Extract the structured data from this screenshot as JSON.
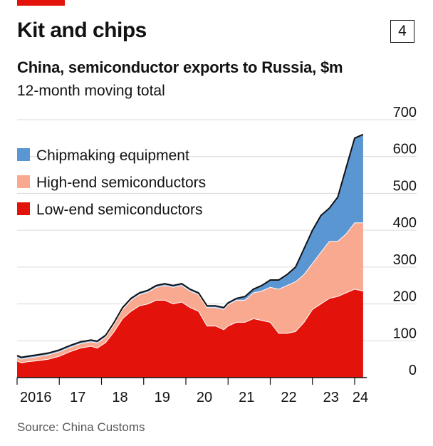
{
  "header": {
    "title": "Kit and chips",
    "chart_number": "4",
    "subtitle": "China, semiconductor exports to Russia, $m",
    "subsubtitle": "12-month moving total",
    "source": "Source: China Customs"
  },
  "colors": {
    "low": "#e3120b",
    "high": "#f9a98f",
    "equipment": "#5a96d2",
    "total_line": "#121212",
    "accent": "#e3120b"
  },
  "chart_data": {
    "type": "area",
    "stacked": true,
    "y_axis": {
      "range": [
        0,
        700
      ],
      "ticks": [
        "0",
        "100",
        "200",
        "300",
        "400",
        "500",
        "600",
        "700"
      ],
      "position": "right",
      "grid": true
    },
    "x_axis": {
      "range": [
        2016,
        2024.2
      ],
      "ticks": [
        {
          "value": 2016,
          "label": "2016"
        },
        {
          "value": 2017,
          "label": "17"
        },
        {
          "value": 2018,
          "label": "18"
        },
        {
          "value": 2019,
          "label": "19"
        },
        {
          "value": 2020,
          "label": "20"
        },
        {
          "value": 2021,
          "label": "21"
        },
        {
          "value": 2022,
          "label": "22"
        },
        {
          "value": 2023,
          "label": "23"
        },
        {
          "value": 2024,
          "label": "24"
        }
      ]
    },
    "legend": {
      "placement": "top-left",
      "items": [
        "Chipmaking equipment",
        "High-end semiconductors",
        "Low-end semiconductors"
      ]
    },
    "x": [
      2016.0,
      2016.1,
      2016.25,
      2016.5,
      2016.75,
      2017.0,
      2017.25,
      2017.5,
      2017.75,
      2017.9,
      2018.1,
      2018.3,
      2018.5,
      2018.7,
      2018.9,
      2019.1,
      2019.3,
      2019.5,
      2019.7,
      2019.9,
      2020.1,
      2020.3,
      2020.5,
      2020.7,
      2020.9,
      2021.0,
      2021.2,
      2021.4,
      2021.6,
      2021.8,
      2022.0,
      2022.2,
      2022.4,
      2022.6,
      2022.8,
      2023.0,
      2023.2,
      2023.4,
      2023.6,
      2023.8,
      2024.0,
      2024.2
    ],
    "series": [
      {
        "name": "Low-end semiconductors",
        "values": [
          45,
          40,
          43,
          46,
          50,
          58,
          70,
          80,
          85,
          80,
          95,
          125,
          160,
          180,
          195,
          200,
          210,
          210,
          200,
          205,
          190,
          180,
          140,
          140,
          130,
          140,
          150,
          150,
          160,
          155,
          150,
          120,
          120,
          125,
          150,
          185,
          200,
          215,
          220,
          230,
          240,
          235
        ]
      },
      {
        "name": "High-end semiconductors",
        "values": [
          10,
          10,
          10,
          11,
          12,
          12,
          12,
          12,
          12,
          14,
          15,
          20,
          25,
          30,
          30,
          32,
          35,
          40,
          45,
          45,
          45,
          45,
          50,
          50,
          55,
          58,
          60,
          60,
          70,
          80,
          95,
          120,
          130,
          135,
          130,
          125,
          140,
          155,
          150,
          160,
          180,
          185
        ]
      },
      {
        "name": "Chipmaking equipment",
        "values": [
          5,
          5,
          5,
          5,
          5,
          5,
          5,
          5,
          5,
          5,
          5,
          5,
          5,
          5,
          5,
          5,
          5,
          5,
          5,
          5,
          5,
          5,
          5,
          5,
          5,
          5,
          5,
          10,
          10,
          15,
          20,
          25,
          30,
          40,
          70,
          90,
          100,
          90,
          120,
          180,
          230,
          240
        ]
      }
    ]
  }
}
